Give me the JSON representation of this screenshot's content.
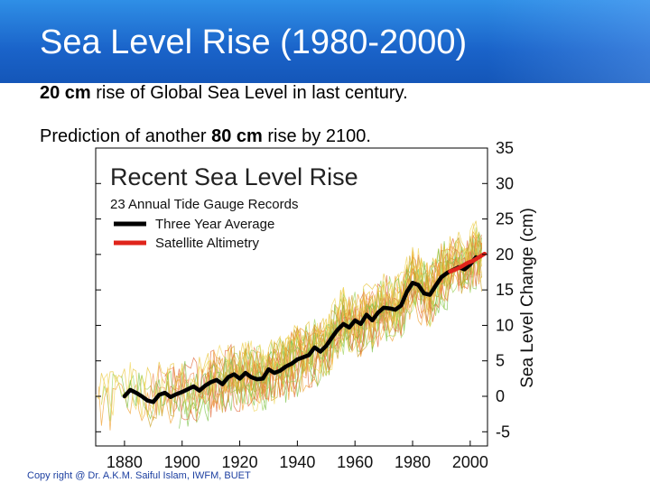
{
  "slide": {
    "title": "Sea Level Rise (1980-2000)",
    "bullet1": {
      "strong": "20 cm",
      "rest": " rise of Global Sea Level in last century."
    },
    "bullet2": {
      "pre": "Prediction of another ",
      "strong": "80 cm",
      "rest": " rise by 2100."
    },
    "copyright": "Copy right @ Dr. A.K.M. Saiful Islam, IWFM, BUET"
  },
  "colors": {
    "title_bar": "#1a63c9",
    "three_year_average": "#000000",
    "satellite": "#e0241b",
    "gauge_records": [
      "#e8c63a",
      "#f0a030",
      "#9fd35c",
      "#e06a3a",
      "#7cc24a",
      "#f2d75a",
      "#c9a227",
      "#ef8d5b"
    ]
  },
  "chart_data": {
    "type": "line",
    "title": "Recent Sea Level Rise",
    "legend_header": "23 Annual Tide Gauge Records",
    "legend": [
      "Three Year Average",
      "Satellite Altimetry"
    ],
    "legend_position": "top-left",
    "ylabel": "Sea Level Change (cm)",
    "xlabel": "",
    "xlim": [
      1870,
      2006
    ],
    "ylim": [
      -7,
      35
    ],
    "x_ticks": [
      1880,
      1900,
      1920,
      1940,
      1960,
      1980,
      2000
    ],
    "y_ticks": [
      -5,
      0,
      5,
      10,
      15,
      20,
      25,
      30,
      35
    ],
    "series": [
      {
        "name": "Three Year Average",
        "x": [
          1880,
          1882,
          1884,
          1886,
          1888,
          1890,
          1892,
          1894,
          1896,
          1898,
          1900,
          1902,
          1904,
          1906,
          1908,
          1910,
          1912,
          1914,
          1916,
          1918,
          1920,
          1922,
          1924,
          1926,
          1928,
          1930,
          1932,
          1934,
          1936,
          1938,
          1940,
          1942,
          1944,
          1946,
          1948,
          1950,
          1952,
          1954,
          1956,
          1958,
          1960,
          1962,
          1964,
          1966,
          1968,
          1970,
          1972,
          1974,
          1976,
          1978,
          1980,
          1982,
          1984,
          1986,
          1988,
          1990,
          1992,
          1994,
          1996,
          1998,
          2000,
          2002
        ],
        "y": [
          0.0,
          0.9,
          0.5,
          0.0,
          -0.6,
          -0.8,
          0.2,
          0.5,
          -0.1,
          0.3,
          0.6,
          1.0,
          1.4,
          0.8,
          1.5,
          2.0,
          2.3,
          1.7,
          2.7,
          3.1,
          2.5,
          3.3,
          2.7,
          2.4,
          2.5,
          3.8,
          3.3,
          3.6,
          4.2,
          4.6,
          5.2,
          5.5,
          5.8,
          6.9,
          6.3,
          7.1,
          8.3,
          9.4,
          10.2,
          9.7,
          10.7,
          10.2,
          11.5,
          10.7,
          11.8,
          12.5,
          12.4,
          12.2,
          12.8,
          14.7,
          16.0,
          15.7,
          14.5,
          14.3,
          15.6,
          16.8,
          17.4,
          17.8,
          18.2,
          17.9,
          18.6,
          19.6
        ]
      },
      {
        "name": "Satellite Altimetry",
        "x": [
          1993,
          1995,
          1997,
          1999,
          2001,
          2003,
          2005
        ],
        "y": [
          17.6,
          17.9,
          18.3,
          18.8,
          19.1,
          19.6,
          20.1
        ]
      }
    ]
  }
}
